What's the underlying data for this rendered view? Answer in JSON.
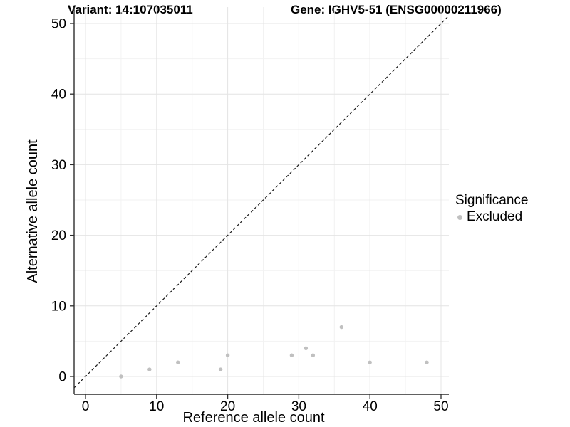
{
  "header": {
    "variant_title": "Variant: 14:107035011",
    "gene_title": "Gene: IGHV5-51 (ENSG00000211966)"
  },
  "legend": {
    "title": "Significance",
    "items": [
      {
        "label": "Excluded",
        "color": "#c0c0c0"
      }
    ]
  },
  "chart_data": {
    "type": "scatter",
    "xlabel": "Reference allele count",
    "ylabel": "Alternative allele count",
    "x_ticks": [
      0,
      10,
      20,
      30,
      40,
      50
    ],
    "y_ticks": [
      0,
      10,
      20,
      30,
      40,
      50
    ],
    "x_minor_ticks": [
      5,
      15,
      25,
      35,
      45
    ],
    "y_minor_ticks": [
      5,
      15,
      25,
      35,
      45
    ],
    "xlim": [
      -1.6,
      51.1
    ],
    "ylim": [
      -2.5,
      52.3
    ],
    "grid": true,
    "legend_position": "right",
    "series": [
      {
        "name": "Excluded",
        "color": "#c0c0c0",
        "points": [
          [
            5,
            0
          ],
          [
            9,
            1
          ],
          [
            13,
            2
          ],
          [
            19,
            1
          ],
          [
            20,
            3
          ],
          [
            29,
            3
          ],
          [
            31,
            4
          ],
          [
            32,
            3
          ],
          [
            36,
            7
          ],
          [
            40,
            2
          ],
          [
            48,
            2
          ]
        ]
      }
    ],
    "reference_line": {
      "type": "identity",
      "slope": 1,
      "intercept": 0,
      "style": "dashed",
      "color": "#1a1a1a"
    }
  },
  "colors": {
    "background": "#ffffff",
    "grid_major": "#e4e4e4",
    "grid_minor": "#f2f2f2",
    "axis_line": "#2d2d2d",
    "tick_text": "#000000",
    "point": "#c0c0c0"
  }
}
